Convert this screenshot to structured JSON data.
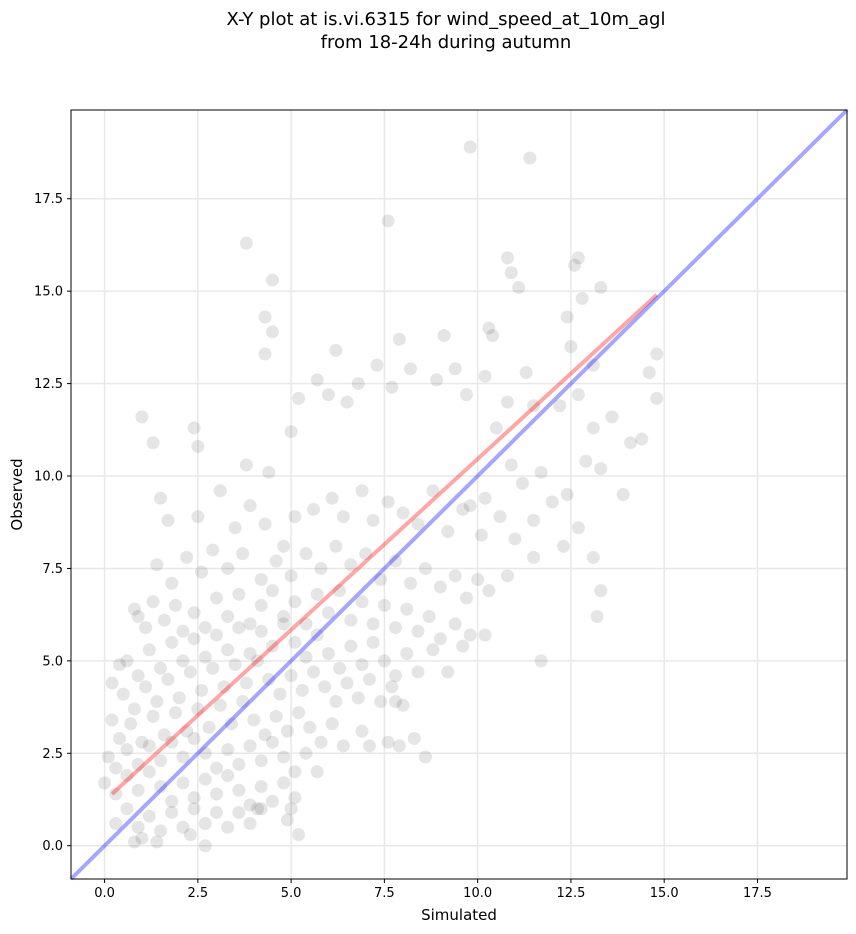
{
  "chart_data": {
    "type": "scatter",
    "title": [
      "X-Y plot at is.vi.6315 for wind_speed_at_10m_agl",
      "from 18-24h during autumn"
    ],
    "xlabel": "Simulated",
    "ylabel": "Observed",
    "xlim": [
      -0.9,
      19.9
    ],
    "ylim": [
      -0.9,
      19.9
    ],
    "xticks": [
      0.0,
      2.5,
      5.0,
      7.5,
      10.0,
      12.5,
      15.0,
      17.5
    ],
    "yticks": [
      0.0,
      2.5,
      5.0,
      7.5,
      10.0,
      12.5,
      15.0,
      17.5
    ],
    "xtick_labels": [
      "0.0",
      "2.5",
      "5.0",
      "7.5",
      "10.0",
      "12.5",
      "15.0",
      "17.5"
    ],
    "ytick_labels": [
      "0.0",
      "2.5",
      "5.0",
      "7.5",
      "10.0",
      "12.5",
      "15.0",
      "17.5"
    ],
    "grid": true,
    "colors": {
      "points": "#000000",
      "regression_line": "#ff0000",
      "identity_line": "#0000ff",
      "grid": "#e8e8e8"
    },
    "regression_line": {
      "x": [
        0.2,
        14.8
      ],
      "y": [
        1.4,
        14.9
      ]
    },
    "identity_line": {
      "x": [
        -0.9,
        19.9
      ],
      "y": [
        -0.9,
        19.9
      ]
    },
    "points": [
      [
        9.8,
        18.9
      ],
      [
        11.4,
        18.6
      ],
      [
        7.6,
        16.9
      ],
      [
        3.8,
        16.3
      ],
      [
        4.5,
        15.3
      ],
      [
        10.8,
        15.9
      ],
      [
        12.7,
        15.9
      ],
      [
        10.9,
        15.5
      ],
      [
        11.1,
        15.1
      ],
      [
        12.6,
        15.7
      ],
      [
        12.8,
        14.8
      ],
      [
        13.3,
        15.1
      ],
      [
        4.3,
        14.3
      ],
      [
        4.5,
        13.9
      ],
      [
        4.3,
        13.3
      ],
      [
        12.4,
        14.3
      ],
      [
        10.3,
        14.0
      ],
      [
        10.4,
        13.8
      ],
      [
        9.1,
        13.8
      ],
      [
        7.9,
        13.7
      ],
      [
        6.2,
        13.4
      ],
      [
        12.5,
        13.5
      ],
      [
        13.1,
        13.0
      ],
      [
        14.6,
        12.8
      ],
      [
        14.8,
        13.3
      ],
      [
        14.8,
        12.1
      ],
      [
        1.0,
        11.6
      ],
      [
        1.3,
        10.9
      ],
      [
        2.4,
        11.3
      ],
      [
        2.5,
        10.8
      ],
      [
        3.8,
        10.3
      ],
      [
        4.4,
        10.1
      ],
      [
        5.0,
        11.2
      ],
      [
        5.2,
        12.1
      ],
      [
        5.7,
        12.6
      ],
      [
        6.0,
        12.2
      ],
      [
        6.5,
        12.0
      ],
      [
        6.8,
        12.5
      ],
      [
        7.3,
        13.0
      ],
      [
        7.7,
        12.4
      ],
      [
        8.2,
        12.9
      ],
      [
        8.9,
        12.6
      ],
      [
        9.4,
        12.9
      ],
      [
        9.7,
        12.2
      ],
      [
        10.2,
        12.7
      ],
      [
        10.8,
        12.0
      ],
      [
        11.3,
        12.8
      ],
      [
        11.5,
        11.9
      ],
      [
        12.2,
        11.9
      ],
      [
        12.7,
        12.2
      ],
      [
        13.1,
        11.3
      ],
      [
        13.6,
        11.6
      ],
      [
        14.1,
        10.9
      ],
      [
        14.4,
        11.0
      ],
      [
        13.3,
        10.2
      ],
      [
        12.9,
        10.4
      ],
      [
        12.4,
        9.5
      ],
      [
        12.0,
        9.3
      ],
      [
        11.7,
        10.1
      ],
      [
        11.2,
        9.8
      ],
      [
        10.9,
        10.3
      ],
      [
        10.5,
        11.3
      ],
      [
        10.2,
        9.4
      ],
      [
        9.8,
        9.2
      ],
      [
        13.9,
        9.5
      ],
      [
        1.5,
        9.4
      ],
      [
        1.7,
        8.8
      ],
      [
        2.5,
        8.9
      ],
      [
        3.1,
        9.6
      ],
      [
        3.5,
        8.6
      ],
      [
        3.9,
        9.2
      ],
      [
        4.3,
        8.7
      ],
      [
        4.8,
        8.1
      ],
      [
        5.1,
        8.9
      ],
      [
        5.6,
        9.1
      ],
      [
        6.1,
        9.4
      ],
      [
        6.4,
        8.9
      ],
      [
        6.9,
        9.6
      ],
      [
        7.2,
        8.8
      ],
      [
        7.6,
        9.3
      ],
      [
        8.0,
        9.0
      ],
      [
        8.4,
        8.7
      ],
      [
        8.8,
        9.6
      ],
      [
        9.2,
        8.5
      ],
      [
        9.6,
        9.1
      ],
      [
        10.1,
        8.4
      ],
      [
        10.6,
        8.9
      ],
      [
        11.0,
        8.3
      ],
      [
        11.5,
        8.8
      ],
      [
        12.3,
        8.1
      ],
      [
        12.7,
        8.6
      ],
      [
        13.1,
        7.8
      ],
      [
        11.5,
        7.8
      ],
      [
        10.8,
        7.3
      ],
      [
        10.0,
        7.2
      ],
      [
        1.4,
        7.6
      ],
      [
        1.8,
        7.1
      ],
      [
        2.2,
        7.8
      ],
      [
        2.6,
        7.4
      ],
      [
        2.9,
        8.0
      ],
      [
        3.3,
        7.5
      ],
      [
        3.7,
        7.9
      ],
      [
        4.2,
        7.2
      ],
      [
        4.6,
        7.7
      ],
      [
        5.0,
        7.3
      ],
      [
        5.4,
        7.9
      ],
      [
        5.8,
        7.5
      ],
      [
        6.2,
        8.1
      ],
      [
        6.6,
        7.6
      ],
      [
        7.0,
        7.9
      ],
      [
        7.4,
        7.2
      ],
      [
        7.8,
        7.7
      ],
      [
        8.2,
        7.1
      ],
      [
        8.6,
        7.5
      ],
      [
        9.0,
        7.0
      ],
      [
        9.4,
        7.3
      ],
      [
        9.7,
        6.7
      ],
      [
        10.3,
        6.9
      ],
      [
        13.3,
        6.9
      ],
      [
        13.2,
        6.2
      ],
      [
        0.8,
        6.4
      ],
      [
        0.9,
        6.2
      ],
      [
        1.1,
        5.9
      ],
      [
        1.3,
        6.6
      ],
      [
        1.6,
        6.1
      ],
      [
        1.9,
        6.5
      ],
      [
        2.1,
        5.8
      ],
      [
        2.4,
        6.3
      ],
      [
        2.7,
        5.9
      ],
      [
        3.0,
        6.7
      ],
      [
        3.3,
        6.2
      ],
      [
        3.6,
        6.8
      ],
      [
        3.9,
        6.0
      ],
      [
        4.2,
        6.5
      ],
      [
        4.5,
        6.9
      ],
      [
        4.8,
        6.2
      ],
      [
        5.1,
        6.6
      ],
      [
        5.4,
        6.0
      ],
      [
        5.7,
        6.8
      ],
      [
        6.0,
        6.3
      ],
      [
        6.3,
        6.9
      ],
      [
        6.6,
        6.1
      ],
      [
        6.9,
        6.6
      ],
      [
        7.2,
        6.0
      ],
      [
        7.5,
        6.5
      ],
      [
        7.8,
        5.9
      ],
      [
        8.1,
        6.4
      ],
      [
        8.4,
        5.8
      ],
      [
        8.7,
        6.2
      ],
      [
        9.0,
        5.6
      ],
      [
        9.4,
        6.0
      ],
      [
        9.8,
        5.7
      ],
      [
        10.2,
        5.7
      ],
      [
        11.7,
        5.0
      ],
      [
        0.4,
        4.9
      ],
      [
        0.6,
        5.0
      ],
      [
        0.9,
        4.6
      ],
      [
        1.2,
        5.3
      ],
      [
        1.5,
        4.8
      ],
      [
        1.8,
        5.5
      ],
      [
        2.1,
        5.0
      ],
      [
        2.4,
        5.6
      ],
      [
        2.7,
        5.1
      ],
      [
        3.0,
        5.7
      ],
      [
        3.3,
        5.3
      ],
      [
        3.6,
        5.9
      ],
      [
        3.9,
        5.2
      ],
      [
        4.2,
        5.8
      ],
      [
        4.5,
        5.4
      ],
      [
        4.8,
        6.0
      ],
      [
        5.1,
        5.5
      ],
      [
        5.4,
        5.1
      ],
      [
        5.7,
        5.7
      ],
      [
        6.0,
        5.2
      ],
      [
        6.3,
        4.8
      ],
      [
        6.6,
        5.4
      ],
      [
        6.9,
        4.9
      ],
      [
        7.2,
        5.5
      ],
      [
        7.5,
        5.0
      ],
      [
        7.8,
        4.6
      ],
      [
        8.1,
        5.2
      ],
      [
        8.4,
        4.7
      ],
      [
        8.8,
        5.3
      ],
      [
        9.2,
        4.7
      ],
      [
        9.6,
        5.4
      ],
      [
        0.2,
        4.4
      ],
      [
        0.5,
        4.1
      ],
      [
        0.8,
        3.7
      ],
      [
        1.1,
        4.3
      ],
      [
        1.4,
        3.9
      ],
      [
        1.7,
        4.5
      ],
      [
        2.0,
        4.0
      ],
      [
        2.3,
        4.7
      ],
      [
        2.6,
        4.2
      ],
      [
        2.9,
        4.8
      ],
      [
        3.2,
        4.3
      ],
      [
        3.5,
        4.9
      ],
      [
        3.8,
        4.4
      ],
      [
        4.1,
        5.0
      ],
      [
        4.4,
        4.5
      ],
      [
        4.7,
        4.1
      ],
      [
        5.0,
        4.6
      ],
      [
        5.3,
        4.2
      ],
      [
        5.6,
        4.7
      ],
      [
        5.9,
        4.3
      ],
      [
        6.2,
        3.9
      ],
      [
        6.5,
        4.4
      ],
      [
        6.8,
        4.0
      ],
      [
        7.1,
        4.5
      ],
      [
        7.4,
        3.9
      ],
      [
        7.7,
        4.3
      ],
      [
        8.0,
        3.8
      ],
      [
        7.8,
        3.9
      ],
      [
        6.9,
        3.1
      ],
      [
        0.2,
        3.4
      ],
      [
        0.4,
        2.9
      ],
      [
        0.7,
        3.3
      ],
      [
        1.0,
        2.8
      ],
      [
        1.3,
        3.5
      ],
      [
        1.6,
        3.0
      ],
      [
        1.9,
        3.6
      ],
      [
        2.2,
        3.1
      ],
      [
        2.5,
        3.7
      ],
      [
        2.8,
        3.2
      ],
      [
        3.1,
        3.8
      ],
      [
        3.4,
        3.3
      ],
      [
        3.7,
        3.9
      ],
      [
        4.0,
        3.4
      ],
      [
        4.3,
        3.0
      ],
      [
        4.6,
        3.5
      ],
      [
        4.9,
        3.1
      ],
      [
        5.2,
        3.6
      ],
      [
        5.5,
        3.2
      ],
      [
        5.8,
        2.8
      ],
      [
        6.1,
        3.3
      ],
      [
        6.4,
        2.7
      ],
      [
        7.1,
        2.7
      ],
      [
        7.6,
        2.8
      ],
      [
        7.9,
        2.7
      ],
      [
        8.3,
        2.9
      ],
      [
        8.6,
        2.4
      ],
      [
        0.1,
        2.4
      ],
      [
        0.3,
        2.1
      ],
      [
        0.6,
        2.6
      ],
      [
        0.9,
        2.2
      ],
      [
        1.2,
        2.7
      ],
      [
        1.5,
        2.3
      ],
      [
        1.8,
        2.8
      ],
      [
        2.1,
        2.4
      ],
      [
        2.4,
        2.9
      ],
      [
        2.7,
        2.5
      ],
      [
        3.0,
        2.1
      ],
      [
        3.3,
        2.6
      ],
      [
        3.6,
        2.2
      ],
      [
        3.9,
        2.7
      ],
      [
        4.2,
        2.3
      ],
      [
        4.5,
        2.8
      ],
      [
        4.8,
        2.4
      ],
      [
        5.1,
        2.0
      ],
      [
        5.4,
        2.5
      ],
      [
        5.7,
        2.0
      ],
      [
        0.0,
        1.7
      ],
      [
        0.3,
        1.4
      ],
      [
        0.6,
        1.9
      ],
      [
        0.9,
        1.5
      ],
      [
        1.2,
        2.0
      ],
      [
        1.5,
        1.6
      ],
      [
        1.8,
        1.2
      ],
      [
        2.1,
        1.7
      ],
      [
        2.4,
        1.3
      ],
      [
        2.7,
        1.8
      ],
      [
        3.0,
        1.4
      ],
      [
        3.3,
        1.9
      ],
      [
        3.6,
        1.5
      ],
      [
        3.9,
        1.1
      ],
      [
        4.2,
        1.6
      ],
      [
        4.5,
        1.2
      ],
      [
        4.8,
        1.7
      ],
      [
        5.1,
        1.3
      ],
      [
        4.1,
        1.0
      ],
      [
        0.3,
        0.6
      ],
      [
        0.6,
        1.0
      ],
      [
        0.9,
        0.5
      ],
      [
        1.2,
        0.8
      ],
      [
        1.5,
        0.4
      ],
      [
        1.8,
        0.9
      ],
      [
        2.1,
        0.5
      ],
      [
        2.4,
        1.0
      ],
      [
        2.7,
        0.6
      ],
      [
        3.0,
        0.9
      ],
      [
        3.3,
        0.5
      ],
      [
        3.6,
        0.9
      ],
      [
        3.9,
        0.6
      ],
      [
        4.2,
        1.0
      ],
      [
        4.9,
        0.7
      ],
      [
        5.0,
        1.0
      ],
      [
        5.2,
        0.3
      ],
      [
        0.8,
        0.1
      ],
      [
        1.0,
        0.2
      ],
      [
        1.4,
        0.1
      ],
      [
        2.7,
        0.0
      ],
      [
        2.3,
        0.3
      ]
    ]
  }
}
